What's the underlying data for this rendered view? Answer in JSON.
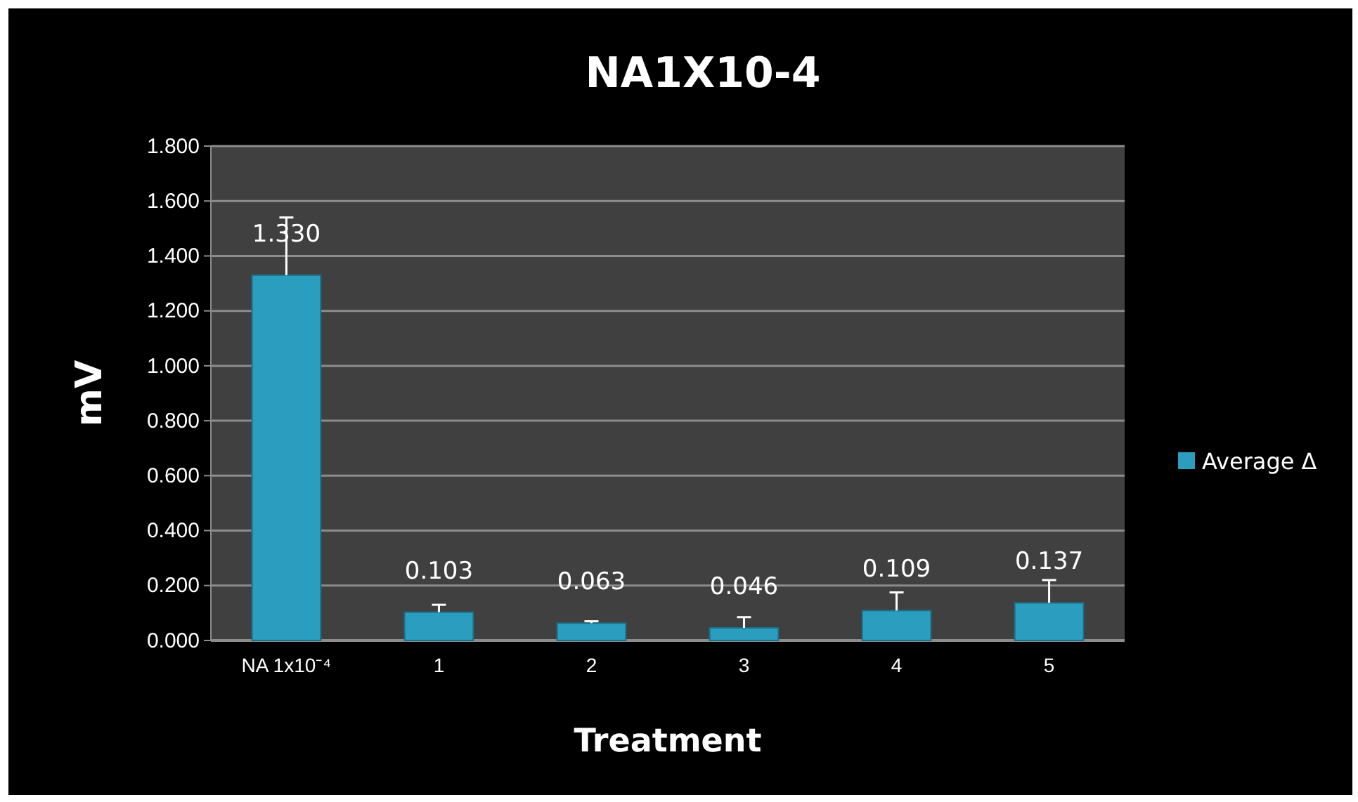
{
  "chart_data": {
    "type": "bar",
    "title": "NA1X10-4",
    "xlabel": "Treatment",
    "ylabel": "mV",
    "categories": [
      "NA 1x10⁻⁴",
      "1",
      "2",
      "3",
      "4",
      "5"
    ],
    "series": [
      {
        "name": "Average Δ",
        "color": "#2b9ec0",
        "values": [
          1.33,
          0.103,
          0.063,
          0.046,
          0.109,
          0.137
        ],
        "errors": [
          [
            1.33,
            1.54
          ],
          [
            0.103,
            0.13
          ],
          [
            0.063,
            0.07
          ],
          [
            0.046,
            0.085
          ],
          [
            0.109,
            0.175
          ],
          [
            0.137,
            0.22
          ]
        ]
      }
    ],
    "value_labels": [
      "1.330",
      "0.103",
      "0.063",
      "0.046",
      "0.109",
      "0.137"
    ],
    "ylim": [
      0,
      1.8
    ],
    "yticks": [
      {
        "value": 0,
        "label": "0.000"
      },
      {
        "value": 0.2,
        "label": "0.200"
      },
      {
        "value": 0.4,
        "label": "0.400"
      },
      {
        "value": 0.6,
        "label": "0.600"
      },
      {
        "value": 0.8,
        "label": "0.800"
      },
      {
        "value": 1,
        "label": "1.000"
      },
      {
        "value": 1.2,
        "label": "1.200"
      },
      {
        "value": 1.4,
        "label": "1.400"
      },
      {
        "value": 1.6,
        "label": "1.600"
      },
      {
        "value": 1.8,
        "label": "1.800"
      }
    ],
    "grid": "y",
    "legend": "right"
  }
}
